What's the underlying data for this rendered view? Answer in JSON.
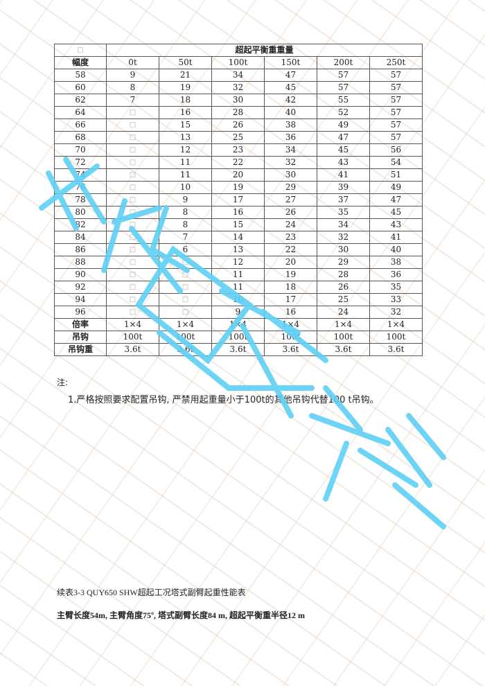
{
  "watermark": {
    "text": "成都巨象吊装",
    "color_bg": "#e3cfbd",
    "color_big": "#5fd0f5"
  },
  "table": {
    "corner": "□",
    "group_header": "超起平衡重重量",
    "row_header": "幅度",
    "columns": [
      "0t",
      "50t",
      "100t",
      "150t",
      "200t",
      "250t"
    ],
    "rows": [
      [
        "58",
        "9",
        "21",
        "34",
        "47",
        "57",
        "57"
      ],
      [
        "60",
        "8",
        "19",
        "32",
        "45",
        "57",
        "57"
      ],
      [
        "62",
        "7",
        "18",
        "30",
        "42",
        "55",
        "57"
      ],
      [
        "64",
        "□",
        "16",
        "28",
        "40",
        "52",
        "57"
      ],
      [
        "66",
        "□",
        "15",
        "26",
        "38",
        "49",
        "57"
      ],
      [
        "68",
        "□",
        "13",
        "25",
        "36",
        "47",
        "57"
      ],
      [
        "70",
        "□",
        "12",
        "23",
        "34",
        "45",
        "56"
      ],
      [
        "72",
        "□",
        "11",
        "22",
        "32",
        "43",
        "54"
      ],
      [
        "74",
        "□",
        "11",
        "20",
        "30",
        "41",
        "51"
      ],
      [
        "76",
        "□",
        "10",
        "19",
        "29",
        "39",
        "49"
      ],
      [
        "78",
        "□",
        "9",
        "17",
        "27",
        "37",
        "47"
      ],
      [
        "80",
        "□",
        "8",
        "16",
        "26",
        "35",
        "45"
      ],
      [
        "82",
        "□",
        "8",
        "15",
        "24",
        "34",
        "43"
      ],
      [
        "84",
        "□",
        "7",
        "14",
        "23",
        "32",
        "41"
      ],
      [
        "86",
        "□",
        "6",
        "13",
        "22",
        "30",
        "40"
      ],
      [
        "88",
        "□",
        "□",
        "12",
        "20",
        "29",
        "38"
      ],
      [
        "90",
        "□",
        "□",
        "11",
        "19",
        "28",
        "36"
      ],
      [
        "92",
        "□",
        "□",
        "11",
        "18",
        "26",
        "35"
      ],
      [
        "94",
        "□",
        "□",
        "10",
        "17",
        "25",
        "33"
      ],
      [
        "96",
        "□",
        "□",
        "9",
        "16",
        "24",
        "32"
      ]
    ],
    "footer_rows": [
      [
        "倍率",
        "1×4",
        "1×4",
        "1×4",
        "1×4",
        "1×4",
        "1×4"
      ],
      [
        "吊钩",
        "100t",
        "100t",
        "100t",
        "100t",
        "100t",
        "100t"
      ],
      [
        "吊钩重",
        "3.6t",
        "3.6t",
        "3.6t",
        "3.6t",
        "3.6t",
        "3.6t"
      ]
    ]
  },
  "notes": {
    "heading": "注:",
    "items": [
      "1.严格按照要求配置吊钩, 严禁用起重量小于100t的其他吊钩代替100 t吊钩。"
    ]
  },
  "caption": "续表3-3 QUY650 SHW超起工况塔式副臂起重性能表",
  "subtitle": "主臂长度54m, 主臂角度75º, 塔式副臂长度84 m, 超起平衡重半径12 m"
}
